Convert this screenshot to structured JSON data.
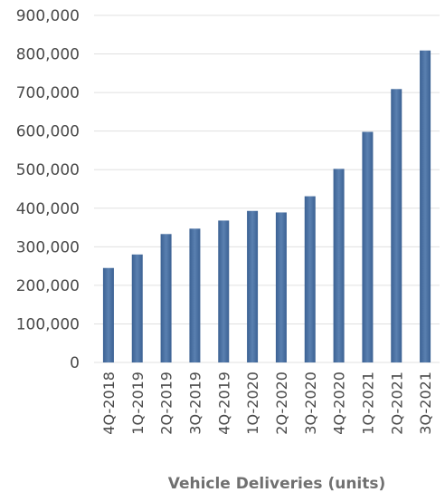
{
  "chart_data": {
    "type": "bar",
    "categories": [
      "4Q-2018",
      "1Q-2019",
      "2Q-2019",
      "3Q-2019",
      "4Q-2019",
      "1Q-2020",
      "2Q-2020",
      "3Q-2020",
      "4Q-2020",
      "1Q-2021",
      "2Q-2021",
      "3Q-2021"
    ],
    "series": [
      {
        "values": [
          245000,
          280000,
          333000,
          347000,
          368000,
          393000,
          389000,
          431000,
          502000,
          598000,
          709000,
          809000
        ]
      }
    ],
    "xlabel": "Vehicle Deliveries (units)",
    "ylabel": "",
    "ylim": [
      0,
      900000
    ],
    "yticks": [
      "0",
      "100,000",
      "200,000",
      "300,000",
      "400,000",
      "500,000",
      "600,000",
      "700,000",
      "800,000",
      "900,000"
    ],
    "grid": true,
    "bar_color": "#3b6193",
    "bar_highlight_color": "#5a80b0"
  }
}
